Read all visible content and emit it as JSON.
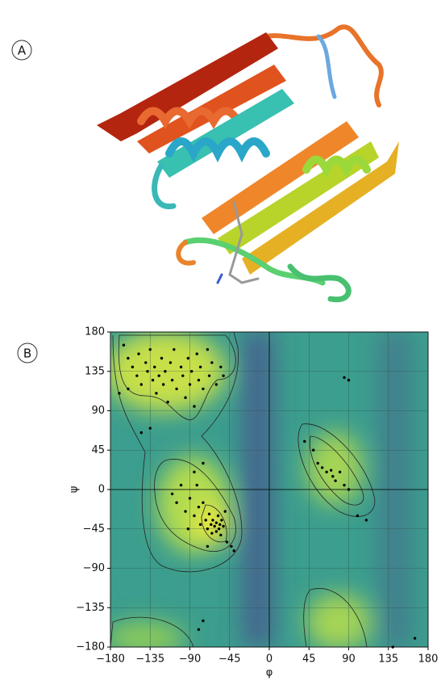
{
  "panel_labels": [
    "A",
    "B"
  ],
  "chart_data": {
    "type": "scatter",
    "xlabel": "φ",
    "ylabel": "ψ",
    "xlim": [
      -180,
      180
    ],
    "ylim": [
      -180,
      180
    ],
    "xticks": [
      {
        "value": -180,
        "label": "−180"
      },
      {
        "value": -135,
        "label": "−135"
      },
      {
        "value": -90,
        "label": "−90"
      },
      {
        "value": -45,
        "label": "−45"
      },
      0,
      45,
      90,
      135,
      180
    ],
    "yticks": [
      {
        "value": -180,
        "label": "−180"
      },
      {
        "value": -135,
        "label": "−135"
      },
      {
        "value": -90,
        "label": "−90"
      },
      {
        "value": -45,
        "label": "−45"
      },
      0,
      45,
      90,
      135,
      180
    ],
    "grid": true,
    "series": [
      {
        "color": "#000000",
        "x": [
          -165,
          -160,
          -155,
          -150,
          -148,
          -145,
          -140,
          -138,
          -135,
          -132,
          -130,
          -128,
          -125,
          -122,
          -120,
          -118,
          -115,
          -112,
          -110,
          -108,
          -105,
          -100,
          -98,
          -95,
          -92,
          -90,
          -88,
          -85,
          -82,
          -80,
          -78,
          -75,
          -70,
          -68,
          -65,
          -60,
          -55,
          -52,
          -170,
          -160,
          -145,
          -135,
          -110,
          -105,
          -100,
          -95,
          -92,
          -90,
          -85,
          -82,
          -80,
          -78,
          -75,
          -72,
          -70,
          -68,
          -66,
          -65,
          -64,
          -62,
          -60,
          -60,
          -58,
          -57,
          -56,
          -55,
          -54,
          -52,
          -50,
          -48,
          -75,
          -85,
          -70,
          -40,
          -43,
          40,
          50,
          55,
          60,
          65,
          70,
          72,
          75,
          80,
          85,
          90,
          100,
          110,
          90,
          85,
          -80,
          -75,
          140,
          165
        ],
        "y": [
          165,
          150,
          140,
          130,
          155,
          120,
          145,
          135,
          160,
          125,
          140,
          110,
          130,
          150,
          120,
          135,
          100,
          145,
          125,
          160,
          115,
          140,
          130,
          105,
          150,
          120,
          135,
          95,
          155,
          125,
          140,
          115,
          160,
          130,
          145,
          120,
          140,
          130,
          110,
          115,
          65,
          70,
          -5,
          -15,
          5,
          -25,
          -45,
          -10,
          -30,
          5,
          -20,
          -40,
          -15,
          -35,
          -45,
          -28,
          -40,
          -50,
          -35,
          -42,
          -38,
          -48,
          -30,
          -45,
          -40,
          -52,
          -35,
          -42,
          -25,
          -60,
          30,
          20,
          -65,
          -70,
          -65,
          55,
          45,
          30,
          25,
          20,
          22,
          15,
          10,
          20,
          5,
          0,
          -30,
          -35,
          125,
          128,
          -160,
          -150,
          -180,
          -170
        ]
      }
    ]
  }
}
